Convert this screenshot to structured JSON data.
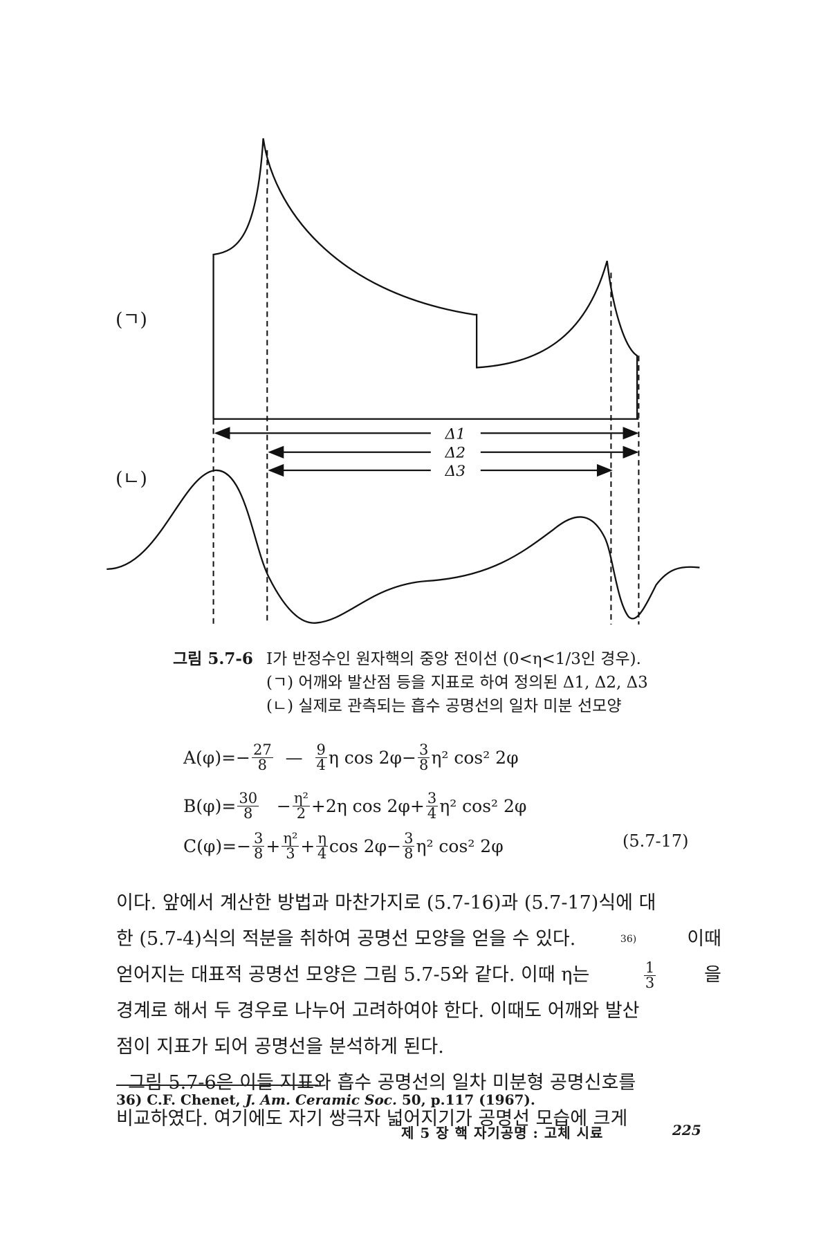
{
  "figure": {
    "panel_a_label": "(ㄱ)",
    "panel_b_label": "(ㄴ)",
    "delta_labels": [
      "Δ1",
      "Δ2",
      "Δ3"
    ]
  },
  "caption": {
    "number": "그림 5.7-6",
    "title": "I가 반정수인 원자핵의 중앙 전이선 (0<η<1/3인 경우).",
    "line_a": "(ㄱ) 어깨와 발산점 등을 지표로 하여 정의된 Δ1, Δ2, Δ3",
    "line_b": "(ㄴ) 실제로 관측되는 흡수 공명선의 일차 미분 선모양"
  },
  "equations": [
    {
      "parts": [
        {
          "t": "A(φ)=−"
        },
        {
          "n": "27",
          "d": "8"
        },
        {
          "t": "  —  "
        },
        {
          "n": "9",
          "d": "4"
        },
        {
          "t": "η cos 2φ−"
        },
        {
          "n": "3",
          "d": "8"
        },
        {
          "t": "η² cos² 2φ"
        }
      ]
    },
    {
      "parts": [
        {
          "t": "B(φ)="
        },
        {
          "n": "30",
          "d": "8"
        },
        {
          "t": "   −"
        },
        {
          "n": "η²",
          "d": "2"
        },
        {
          "t": "+2η cos 2φ+"
        },
        {
          "n": "3",
          "d": "4"
        },
        {
          "t": "η² cos² 2φ"
        }
      ]
    },
    {
      "parts": [
        {
          "t": "C(φ)=−"
        },
        {
          "n": "3",
          "d": "8"
        },
        {
          "t": "+"
        },
        {
          "n": "η²",
          "d": "3"
        },
        {
          "t": "+"
        },
        {
          "n": "η",
          "d": "4"
        },
        {
          "t": "cos 2φ−"
        },
        {
          "n": "3",
          "d": "8"
        },
        {
          "t": "η² cos² 2φ"
        }
      ]
    }
  ],
  "equation_number": "(5.7-17)",
  "body_lines": [
    {
      "parts": [
        {
          "t": "이다. 앞에서 계산한 방법과 마찬가지로 (5.7-16)과 (5.7-17)식에 대"
        }
      ]
    },
    {
      "parts": [
        {
          "t": "한 (5.7-4)식의 적분을 취하여 공명선 모양을 얻을 수 있다."
        },
        {
          "sup": "36)"
        },
        {
          "t": " 이때"
        }
      ]
    },
    {
      "parts": [
        {
          "t": "얻어지는 대표적 공명선 모양은 그림 5.7-5와 같다. 이때 η는 "
        },
        {
          "n": "1",
          "d": "3"
        },
        {
          "t": "을"
        }
      ]
    },
    {
      "parts": [
        {
          "t": "경계로 해서 두 경우로 나누어 고려하여야 한다. 이때도 어깨와 발산"
        }
      ]
    },
    {
      "parts": [
        {
          "t": "점이 지표가 되어 공명선을 분석하게 된다."
        }
      ],
      "last": true
    },
    {
      "parts": [
        {
          "t": "  그림 5.7-6은 이들 지표와 흡수 공명선의 일차 미분형 공명신호를"
        }
      ]
    },
    {
      "parts": [
        {
          "t": "비교하였다. 여기에도 자기 쌍극자 넓어지기가 공명선 모습에 크게"
        }
      ]
    }
  ],
  "footnote": {
    "prefix": "36) C.F. Chenet, ",
    "journal": "J. Am. Ceramic Soc.",
    "suffix": " 50, p.117 (1967)."
  },
  "footer": {
    "chapter": "제 5 장  핵 자기공명 : 고체 시료",
    "page": "225"
  }
}
